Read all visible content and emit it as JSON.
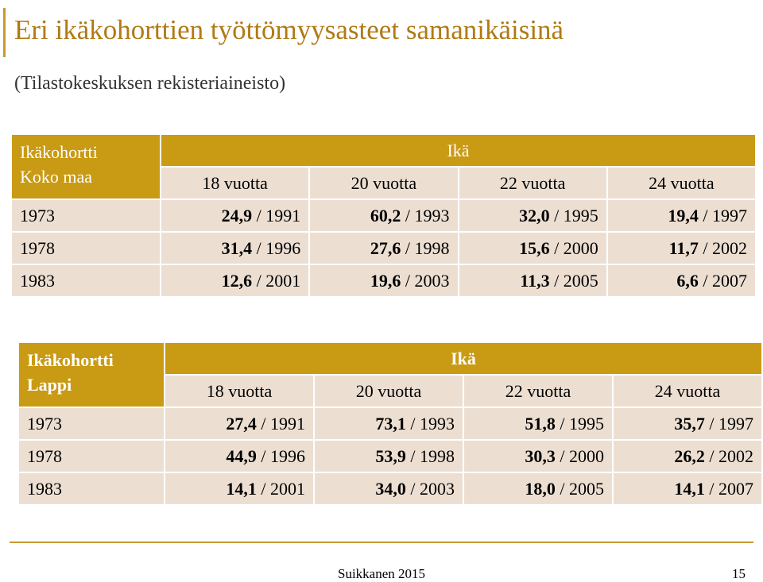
{
  "title": "Eri ikäkohorttien työttömyysasteet samanikäisinä",
  "subtitle": "(Tilastokeskuksen rekisteriaineisto)",
  "colors": {
    "accent": "#c99a14",
    "cell": "#ecdfd2",
    "title": "#b07a14"
  },
  "tables": [
    {
      "cohort_line1": "Ikäkohortti",
      "cohort_line2": "Koko maa",
      "ika": "Ikä",
      "ages": [
        "18 vuotta",
        "20 vuotta",
        "22 vuotta",
        "24 vuotta"
      ],
      "rows": [
        {
          "year": "1973",
          "cells": [
            {
              "v": "24,9",
              "y": " / 1991"
            },
            {
              "v": "60,2",
              "y": " / 1993"
            },
            {
              "v": "32,0",
              "y": " / 1995"
            },
            {
              "v": "19,4",
              "y": " / 1997"
            }
          ]
        },
        {
          "year": "1978",
          "cells": [
            {
              "v": "31,4",
              "y": " / 1996"
            },
            {
              "v": "27,6",
              "y": " / 1998"
            },
            {
              "v": "15,6",
              "y": " / 2000"
            },
            {
              "v": "11,7",
              "y": " / 2002"
            }
          ]
        },
        {
          "year": "1983",
          "cells": [
            {
              "v": "12,6",
              "y": " / 2001"
            },
            {
              "v": "19,6",
              "y": " / 2003"
            },
            {
              "v": "11,3",
              "y": " / 2005"
            },
            {
              "v": "6,6",
              "y": " / 2007"
            }
          ]
        }
      ]
    },
    {
      "cohort_line1": "Ikäkohortti",
      "cohort_line2": "Lappi",
      "ika": "Ikä",
      "ages": [
        "18 vuotta",
        "20 vuotta",
        "22 vuotta",
        "24 vuotta"
      ],
      "rows": [
        {
          "year": "1973",
          "cells": [
            {
              "v": "27,4",
              "y": " / 1991"
            },
            {
              "v": "73,1",
              "y": " / 1993"
            },
            {
              "v": "51,8",
              "y": " / 1995"
            },
            {
              "v": "35,7",
              "y": " / 1997"
            }
          ]
        },
        {
          "year": "1978",
          "cells": [
            {
              "v": "44,9",
              "y": " / 1996"
            },
            {
              "v": "53,9",
              "y": " / 1998"
            },
            {
              "v": "30,3",
              "y": " / 2000"
            },
            {
              "v": "26,2",
              "y": " / 2002"
            }
          ]
        },
        {
          "year": "1983",
          "cells": [
            {
              "v": "14,1",
              "y": " / 2001"
            },
            {
              "v": "34,0",
              "y": " / 2003"
            },
            {
              "v": "18,0",
              "y": " / 2005"
            },
            {
              "v": "14,1",
              "y": " / 2007"
            }
          ]
        }
      ]
    }
  ],
  "footer": {
    "source": "Suikkanen 2015",
    "page": "15"
  }
}
